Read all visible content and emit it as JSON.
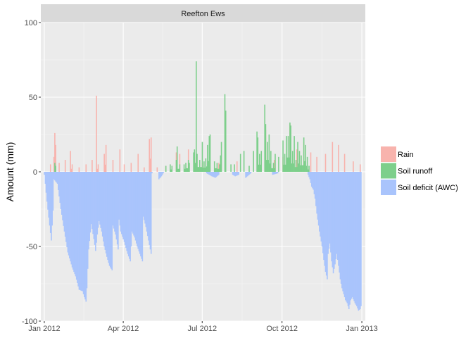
{
  "chart_data": {
    "type": "bar",
    "facet_title": "Reefton Ews",
    "xlabel": "",
    "ylabel": "Amount (mm)",
    "ylim": [
      -100,
      100
    ],
    "yticks": [
      100,
      50,
      0,
      -50,
      -100
    ],
    "x_ticks": [
      {
        "date": "2012-01-01",
        "label": "Jan 2012"
      },
      {
        "date": "2012-04-01",
        "label": "Apr 2012"
      },
      {
        "date": "2012-07-01",
        "label": "Jul 2012"
      },
      {
        "date": "2012-10-01",
        "label": "Oct 2012"
      },
      {
        "date": "2013-01-01",
        "label": "Jan 2013"
      }
    ],
    "xlim": [
      "2011-12-28",
      "2013-01-05"
    ],
    "grid": true,
    "legend_position": "right",
    "colors": {
      "panel": "#ebebeb",
      "grid": "#ffffff",
      "strip": "#d9d9d9"
    },
    "series": [
      {
        "name": "Rain",
        "color": "#f8b3ad",
        "points": [
          [
            "2012-01-08",
            5
          ],
          [
            "2012-01-12",
            10
          ],
          [
            "2012-01-13",
            26
          ],
          [
            "2012-01-14",
            18
          ],
          [
            "2012-01-18",
            6
          ],
          [
            "2012-01-25",
            8
          ],
          [
            "2012-01-31",
            14
          ],
          [
            "2012-02-02",
            5
          ],
          [
            "2012-02-10",
            3
          ],
          [
            "2012-02-18",
            5
          ],
          [
            "2012-02-25",
            8
          ],
          [
            "2012-03-01",
            51
          ],
          [
            "2012-03-03",
            5
          ],
          [
            "2012-03-10",
            12
          ],
          [
            "2012-03-12",
            18
          ],
          [
            "2012-03-20",
            8
          ],
          [
            "2012-03-28",
            15
          ],
          [
            "2012-04-02",
            5
          ],
          [
            "2012-04-10",
            6
          ],
          [
            "2012-04-18",
            12
          ],
          [
            "2012-04-25",
            3
          ],
          [
            "2012-05-01",
            22
          ],
          [
            "2012-05-03",
            23
          ],
          [
            "2012-05-10",
            3
          ],
          [
            "2012-05-20",
            4
          ],
          [
            "2012-06-01",
            13
          ],
          [
            "2012-06-05",
            12
          ],
          [
            "2012-06-15",
            15
          ],
          [
            "2012-06-22",
            10
          ],
          [
            "2012-07-01",
            6
          ],
          [
            "2012-07-05",
            3
          ],
          [
            "2012-07-20",
            6
          ],
          [
            "2012-08-10",
            7
          ],
          [
            "2012-09-12",
            28
          ],
          [
            "2012-09-22",
            8
          ],
          [
            "2012-10-02",
            10
          ],
          [
            "2012-10-10",
            32
          ],
          [
            "2012-10-18",
            15
          ],
          [
            "2012-10-26",
            20
          ],
          [
            "2012-11-03",
            13
          ],
          [
            "2012-11-10",
            10
          ],
          [
            "2012-11-20",
            12
          ],
          [
            "2012-11-28",
            20
          ],
          [
            "2012-12-05",
            18
          ],
          [
            "2012-12-12",
            12
          ],
          [
            "2012-12-22",
            7
          ],
          [
            "2012-12-30",
            5
          ]
        ]
      },
      {
        "name": "Soil runoff",
        "color": "#7dcf8b",
        "points": [
          [
            "2012-01-13",
            6
          ],
          [
            "2012-01-14",
            4
          ],
          [
            "2012-05-20",
            4
          ],
          [
            "2012-05-25",
            5
          ],
          [
            "2012-05-27",
            4
          ],
          [
            "2012-06-01",
            8
          ],
          [
            "2012-06-02",
            17
          ],
          [
            "2012-06-05",
            5
          ],
          [
            "2012-06-10",
            5
          ],
          [
            "2012-06-12",
            6
          ],
          [
            "2012-06-15",
            8
          ],
          [
            "2012-06-16",
            6
          ],
          [
            "2012-06-21",
            13
          ],
          [
            "2012-06-22",
            15
          ],
          [
            "2012-06-24",
            74
          ],
          [
            "2012-06-25",
            12
          ],
          [
            "2012-06-28",
            8
          ],
          [
            "2012-07-01",
            20
          ],
          [
            "2012-07-03",
            7
          ],
          [
            "2012-07-05",
            9
          ],
          [
            "2012-07-07",
            18
          ],
          [
            "2012-07-09",
            24
          ],
          [
            "2012-07-10",
            25
          ],
          [
            "2012-07-15",
            7
          ],
          [
            "2012-07-18",
            6
          ],
          [
            "2012-07-21",
            5
          ],
          [
            "2012-07-22",
            11
          ],
          [
            "2012-07-23",
            20
          ],
          [
            "2012-07-27",
            52
          ],
          [
            "2012-07-28",
            41
          ],
          [
            "2012-08-03",
            5
          ],
          [
            "2012-08-07",
            5
          ],
          [
            "2012-08-14",
            12
          ],
          [
            "2012-08-18",
            14
          ],
          [
            "2012-08-24",
            4
          ],
          [
            "2012-08-29",
            14
          ],
          [
            "2012-09-02",
            27
          ],
          [
            "2012-09-03",
            23
          ],
          [
            "2012-09-05",
            12
          ],
          [
            "2012-09-07",
            14
          ],
          [
            "2012-09-11",
            45
          ],
          [
            "2012-09-12",
            32
          ],
          [
            "2012-09-14",
            20
          ],
          [
            "2012-09-16",
            25
          ],
          [
            "2012-09-18",
            14
          ],
          [
            "2012-09-21",
            6
          ],
          [
            "2012-09-23",
            12
          ],
          [
            "2012-09-27",
            10
          ],
          [
            "2012-10-02",
            21
          ],
          [
            "2012-10-04",
            12
          ],
          [
            "2012-10-06",
            24
          ],
          [
            "2012-10-08",
            24
          ],
          [
            "2012-10-10",
            33
          ],
          [
            "2012-10-11",
            31
          ],
          [
            "2012-10-13",
            14
          ],
          [
            "2012-10-15",
            24
          ],
          [
            "2012-10-17",
            8
          ],
          [
            "2012-10-19",
            20
          ],
          [
            "2012-10-21",
            14
          ],
          [
            "2012-10-23",
            11
          ],
          [
            "2012-10-26",
            23
          ],
          [
            "2012-10-28",
            18
          ],
          [
            "2012-10-30",
            10
          ],
          [
            "2012-11-01",
            4
          ]
        ]
      },
      {
        "name": "Soil deficit (AWC)",
        "color": "#a9c4fc",
        "points": [
          [
            "2012-01-01",
            -2
          ],
          [
            "2012-01-04",
            -20
          ],
          [
            "2012-01-07",
            -36
          ],
          [
            "2012-01-09",
            -46
          ],
          [
            "2012-01-11",
            -26
          ],
          [
            "2012-01-12",
            -5
          ],
          [
            "2012-01-16",
            -8
          ],
          [
            "2012-01-20",
            -25
          ],
          [
            "2012-01-24",
            -40
          ],
          [
            "2012-01-28",
            -54
          ],
          [
            "2012-02-02",
            -64
          ],
          [
            "2012-02-06",
            -70
          ],
          [
            "2012-02-10",
            -79
          ],
          [
            "2012-02-14",
            -80
          ],
          [
            "2012-02-16",
            -84
          ],
          [
            "2012-02-18",
            -87
          ],
          [
            "2012-02-19",
            -78
          ],
          [
            "2012-02-21",
            -52
          ],
          [
            "2012-02-24",
            -35
          ],
          [
            "2012-02-27",
            -45
          ],
          [
            "2012-02-29",
            -53
          ],
          [
            "2012-03-02",
            -42
          ],
          [
            "2012-03-04",
            -33
          ],
          [
            "2012-03-07",
            -40
          ],
          [
            "2012-03-10",
            -50
          ],
          [
            "2012-03-13",
            -57
          ],
          [
            "2012-03-16",
            -63
          ],
          [
            "2012-03-19",
            -66
          ],
          [
            "2012-03-20",
            -36
          ],
          [
            "2012-03-23",
            -42
          ],
          [
            "2012-03-26",
            -52
          ],
          [
            "2012-03-27",
            -32
          ],
          [
            "2012-03-29",
            -40
          ],
          [
            "2012-04-02",
            -47
          ],
          [
            "2012-04-06",
            -55
          ],
          [
            "2012-04-09",
            -60
          ],
          [
            "2012-04-11",
            -40
          ],
          [
            "2012-04-14",
            -44
          ],
          [
            "2012-04-17",
            -50
          ],
          [
            "2012-04-20",
            -55
          ],
          [
            "2012-04-23",
            -60
          ],
          [
            "2012-04-24",
            -30
          ],
          [
            "2012-04-27",
            -37
          ],
          [
            "2012-04-30",
            -46
          ],
          [
            "2012-05-02",
            -52
          ],
          [
            "2012-05-03",
            -55
          ],
          [
            "2012-05-04",
            -1
          ],
          [
            "2012-05-12",
            -5
          ],
          [
            "2012-05-15",
            -3
          ],
          [
            "2012-05-17",
            -1
          ],
          [
            "2012-07-06",
            -1
          ],
          [
            "2012-07-12",
            -3
          ],
          [
            "2012-07-16",
            -4
          ],
          [
            "2012-07-20",
            -2
          ],
          [
            "2012-08-05",
            -2
          ],
          [
            "2012-08-08",
            -3
          ],
          [
            "2012-08-12",
            -2
          ],
          [
            "2012-08-20",
            -4
          ],
          [
            "2012-08-22",
            -3
          ],
          [
            "2012-08-26",
            -1
          ],
          [
            "2012-09-20",
            -2
          ],
          [
            "2012-09-26",
            -1
          ],
          [
            "2012-10-31",
            -2
          ],
          [
            "2012-11-02",
            -5
          ],
          [
            "2012-11-04",
            -10
          ],
          [
            "2012-11-06",
            -12
          ],
          [
            "2012-11-08",
            -18
          ],
          [
            "2012-11-10",
            -28
          ],
          [
            "2012-11-13",
            -40
          ],
          [
            "2012-11-16",
            -50
          ],
          [
            "2012-11-18",
            -59
          ],
          [
            "2012-11-20",
            -67
          ],
          [
            "2012-11-22",
            -72
          ],
          [
            "2012-11-23",
            -55
          ],
          [
            "2012-11-25",
            -48
          ],
          [
            "2012-11-27",
            -60
          ],
          [
            "2012-11-29",
            -68
          ],
          [
            "2012-12-01",
            -62
          ],
          [
            "2012-12-03",
            -55
          ],
          [
            "2012-12-05",
            -63
          ],
          [
            "2012-12-07",
            -72
          ],
          [
            "2012-12-09",
            -78
          ],
          [
            "2012-12-11",
            -82
          ],
          [
            "2012-12-13",
            -86
          ],
          [
            "2012-12-15",
            -88
          ],
          [
            "2012-12-17",
            -92
          ],
          [
            "2012-12-19",
            -86
          ],
          [
            "2012-12-21",
            -84
          ],
          [
            "2012-12-24",
            -88
          ],
          [
            "2012-12-26",
            -90
          ],
          [
            "2012-12-28",
            -93
          ],
          [
            "2012-12-30",
            -92
          ],
          [
            "2012-12-31",
            -90
          ]
        ]
      }
    ]
  }
}
